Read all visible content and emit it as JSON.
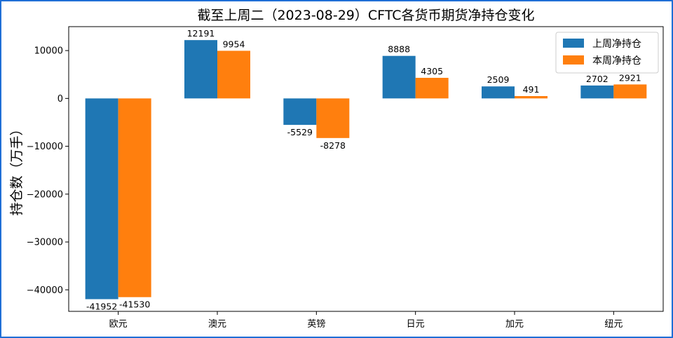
{
  "chart_data": {
    "type": "bar",
    "title": "截至上周二（2023-08-29）CFTC各货币期货净持仓变化",
    "xlabel": "",
    "ylabel": "持仓数（万手）",
    "categories": [
      "欧元",
      "澳元",
      "英镑",
      "日元",
      "加元",
      "纽元"
    ],
    "series": [
      {
        "name": "上周净持仓",
        "color": "#1f77b4",
        "values": [
          -41952,
          12191,
          -5529,
          8888,
          2509,
          2702
        ]
      },
      {
        "name": "本周净持仓",
        "color": "#ff7f0e",
        "values": [
          -41530,
          9954,
          -8278,
          4305,
          491,
          2921
        ]
      }
    ],
    "ylim": [
      -44500,
      15000
    ],
    "yticks": [
      -40000,
      -30000,
      -20000,
      -10000,
      0,
      10000
    ],
    "ytick_labels": [
      "−40000",
      "−30000",
      "−20000",
      "−10000",
      "0",
      "10000"
    ],
    "data_labels": [
      [
        "-41952",
        "12191",
        "-5529",
        "8888",
        "2509",
        "2702"
      ],
      [
        "-41530",
        "9954",
        "-8278",
        "4305",
        "491",
        "2921"
      ]
    ],
    "legend_position": "upper-right",
    "grid": false
  }
}
